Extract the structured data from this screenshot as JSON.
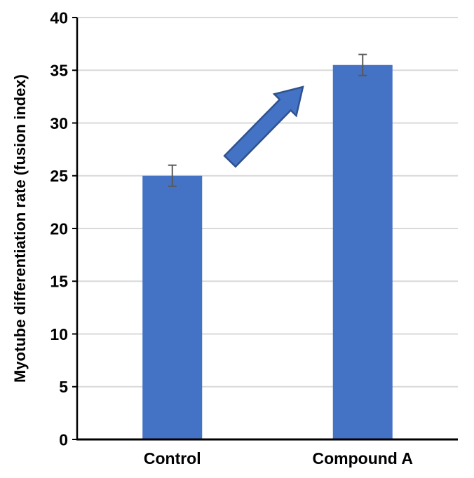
{
  "chart_data": {
    "type": "bar",
    "title": "",
    "xlabel": "",
    "ylabel": "Myotube differentiation rate (fusion index)",
    "categories": [
      "Control",
      "Compound A"
    ],
    "values": [
      25,
      35.5
    ],
    "errors": [
      1,
      1
    ],
    "ylim": [
      0,
      40
    ],
    "yticks": [
      0,
      5,
      10,
      15,
      20,
      25,
      30,
      35,
      40
    ],
    "grid": "horizontal",
    "legend_position": "none",
    "colors": {
      "bar": "#4472C4",
      "error_bar": "#595959",
      "gridline": "#D9D9D9",
      "axis": "#000000",
      "text": "#000000",
      "arrow_fill": "#4472C4",
      "arrow_outline": "#2F528F"
    },
    "annotations": [
      {
        "type": "block-arrow",
        "direction": "up-right",
        "meaning": "increase from Control to Compound A"
      }
    ]
  }
}
